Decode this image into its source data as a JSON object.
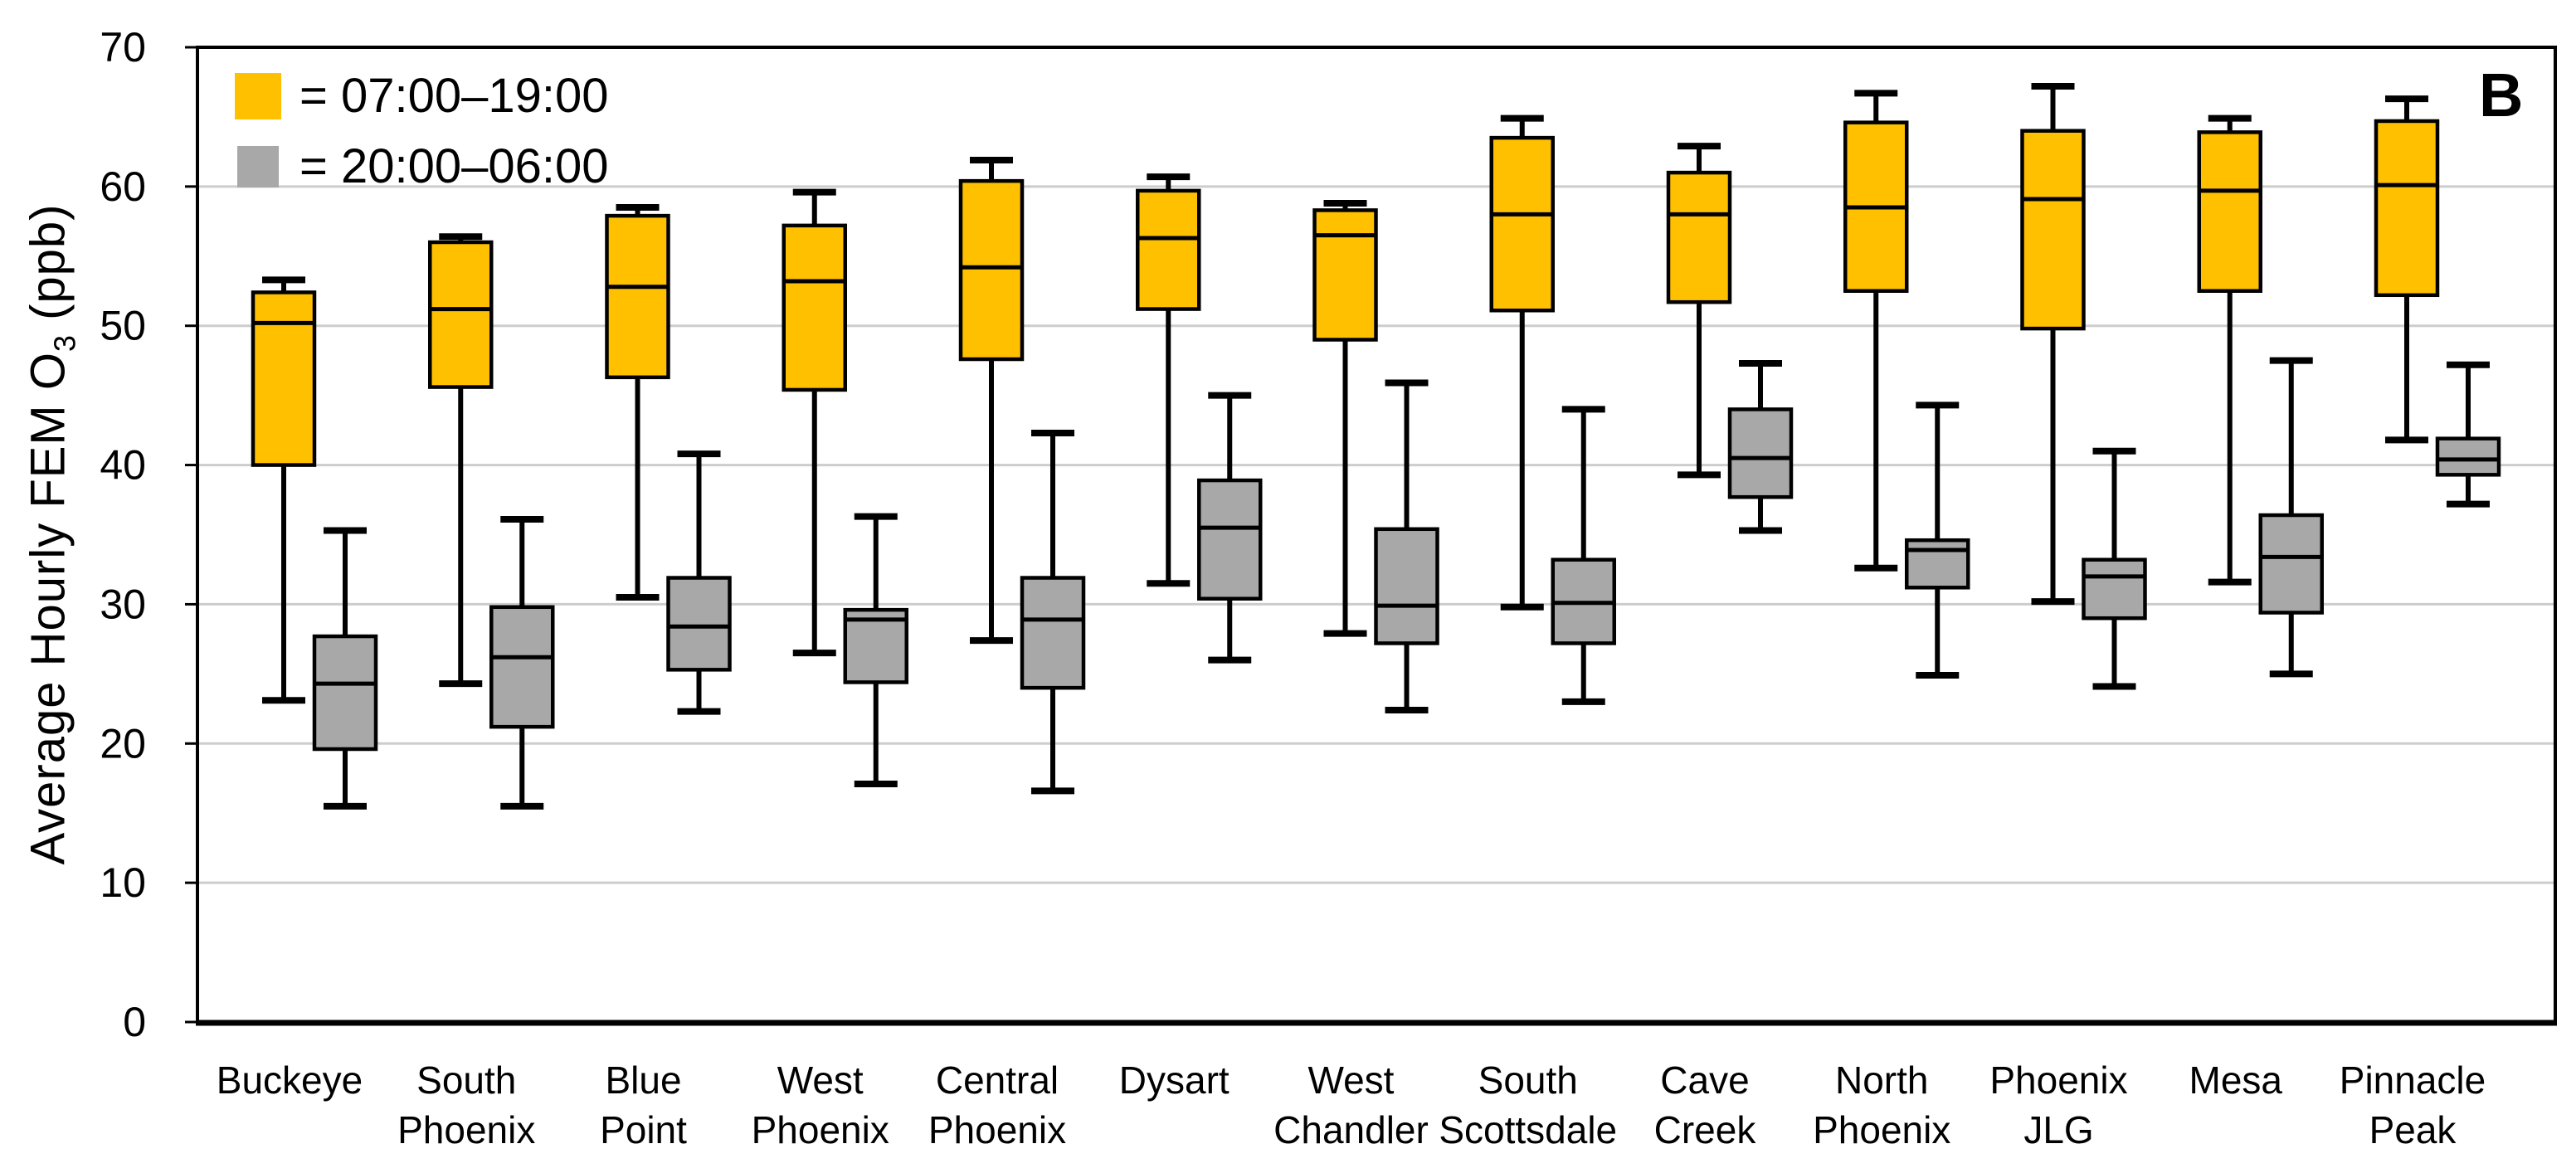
{
  "figure_label": "B",
  "legend": {
    "items": [
      {
        "label": "= 07:00–19:00",
        "swatch_color": "#FFC000",
        "series": "day"
      },
      {
        "label": "= 20:00–06:00",
        "swatch_color": "#A8A8A8",
        "series": "night"
      }
    ]
  },
  "y_axis": {
    "title_main": "Average Hourly FEM O",
    "title_subscript": "3",
    "title_unit": " (ppb)",
    "min": 0,
    "max": 70,
    "step": 10,
    "tick_labels": [
      "0",
      "10",
      "20",
      "30",
      "40",
      "50",
      "60",
      "70"
    ]
  },
  "chart_data": {
    "type": "boxplot",
    "title": "",
    "ylabel": "Average Hourly FEM O3 (ppb)",
    "ylim": [
      0,
      70
    ],
    "grid": "horizontal",
    "legend_position": "top-left-inside",
    "panel_label": "B",
    "categories": [
      "Buckeye",
      "South Phoenix",
      "Blue Point",
      "West Phoenix",
      "Central Phoenix",
      "Dysart",
      "West Chandler",
      "South Scottsdale",
      "Cave Creek",
      "North Phoenix",
      "Phoenix JLG",
      "Mesa",
      "Pinnacle Peak"
    ],
    "category_label_lines": [
      [
        "Buckeye"
      ],
      [
        "South",
        "Phoenix"
      ],
      [
        "Blue",
        "Point"
      ],
      [
        "West",
        "Phoenix"
      ],
      [
        "Central",
        "Phoenix"
      ],
      [
        "Dysart"
      ],
      [
        "West",
        "Chandler"
      ],
      [
        "South",
        "Scottsdale"
      ],
      [
        "Cave",
        "Creek"
      ],
      [
        "North",
        "Phoenix"
      ],
      [
        "Phoenix",
        "JLG"
      ],
      [
        "Mesa"
      ],
      [
        "Pinnacle",
        "Peak"
      ]
    ],
    "series": [
      {
        "name": "07:00–19:00",
        "color": "#FFC000",
        "boxes": [
          {
            "min": 23.1,
            "q1": 40.0,
            "median": 50.2,
            "q3": 52.4,
            "max": 53.3
          },
          {
            "min": 24.3,
            "q1": 45.6,
            "median": 51.2,
            "q3": 56.0,
            "max": 56.4
          },
          {
            "min": 30.5,
            "q1": 46.3,
            "median": 52.8,
            "q3": 57.9,
            "max": 58.5
          },
          {
            "min": 26.5,
            "q1": 45.4,
            "median": 53.2,
            "q3": 57.2,
            "max": 59.6
          },
          {
            "min": 27.4,
            "q1": 47.6,
            "median": 54.2,
            "q3": 60.4,
            "max": 61.9
          },
          {
            "min": 31.5,
            "q1": 51.2,
            "median": 56.3,
            "q3": 59.7,
            "max": 60.7
          },
          {
            "min": 27.9,
            "q1": 49.0,
            "median": 56.5,
            "q3": 58.3,
            "max": 58.8
          },
          {
            "min": 29.8,
            "q1": 51.1,
            "median": 58.0,
            "q3": 63.5,
            "max": 64.9
          },
          {
            "min": 39.3,
            "q1": 51.7,
            "median": 58.0,
            "q3": 61.0,
            "max": 62.9
          },
          {
            "min": 32.6,
            "q1": 52.5,
            "median": 58.5,
            "q3": 64.6,
            "max": 66.7
          },
          {
            "min": 30.2,
            "q1": 49.8,
            "median": 59.1,
            "q3": 64.0,
            "max": 67.2
          },
          {
            "min": 31.6,
            "q1": 52.5,
            "median": 59.7,
            "q3": 63.9,
            "max": 64.9
          },
          {
            "min": 41.8,
            "q1": 52.2,
            "median": 60.1,
            "q3": 64.7,
            "max": 66.3
          }
        ]
      },
      {
        "name": "20:00–06:00",
        "color": "#A8A8A8",
        "boxes": [
          {
            "min": 15.5,
            "q1": 19.6,
            "median": 24.3,
            "q3": 27.7,
            "max": 35.3
          },
          {
            "min": 15.5,
            "q1": 21.2,
            "median": 26.2,
            "q3": 29.8,
            "max": 36.1
          },
          {
            "min": 22.3,
            "q1": 25.3,
            "median": 28.4,
            "q3": 31.9,
            "max": 40.8
          },
          {
            "min": 17.1,
            "q1": 24.4,
            "median": 28.9,
            "q3": 29.6,
            "max": 36.3
          },
          {
            "min": 16.6,
            "q1": 24.0,
            "median": 28.9,
            "q3": 31.9,
            "max": 42.3
          },
          {
            "min": 26.0,
            "q1": 30.4,
            "median": 35.5,
            "q3": 38.9,
            "max": 45.0
          },
          {
            "min": 22.4,
            "q1": 27.2,
            "median": 29.9,
            "q3": 35.4,
            "max": 45.9
          },
          {
            "min": 23.0,
            "q1": 27.2,
            "median": 30.1,
            "q3": 33.2,
            "max": 44.0
          },
          {
            "min": 35.3,
            "q1": 37.7,
            "median": 40.5,
            "q3": 44.0,
            "max": 47.3
          },
          {
            "min": 24.9,
            "q1": 31.2,
            "median": 33.9,
            "q3": 34.6,
            "max": 44.3
          },
          {
            "min": 24.1,
            "q1": 29.0,
            "median": 32.0,
            "q3": 33.2,
            "max": 41.0
          },
          {
            "min": 25.0,
            "q1": 29.4,
            "median": 33.4,
            "q3": 36.4,
            "max": 47.5
          },
          {
            "min": 37.2,
            "q1": 39.3,
            "median": 40.4,
            "q3": 41.9,
            "max": 47.2
          }
        ]
      }
    ]
  }
}
